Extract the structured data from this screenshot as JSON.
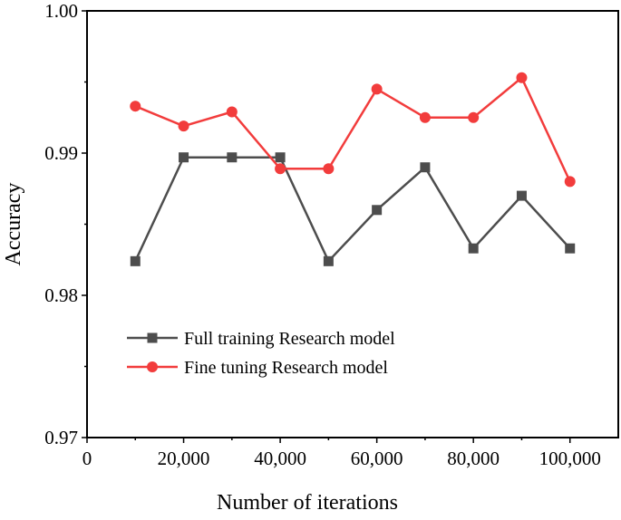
{
  "chart_data": {
    "type": "line",
    "title": "",
    "xlabel": "Number of iterations",
    "ylabel": "Accuracy",
    "xlim": [
      0,
      110000
    ],
    "ylim": [
      0.97,
      1.0
    ],
    "xticks": [
      0,
      20000,
      40000,
      60000,
      80000,
      100000
    ],
    "xtick_labels": [
      "0",
      "20,000",
      "40,000",
      "60,000",
      "80,000",
      "100,000"
    ],
    "yticks": [
      0.97,
      0.98,
      0.99,
      1.0
    ],
    "ytick_labels": [
      "0.97",
      "0.98",
      "0.99",
      "1.00"
    ],
    "grid": false,
    "legend_placement": "center-left",
    "x": [
      10000,
      20000,
      30000,
      40000,
      50000,
      60000,
      70000,
      80000,
      90000,
      100000
    ],
    "series": [
      {
        "name": "Full training Research model",
        "color": "#4d4d4d",
        "marker": "square",
        "values": [
          0.9824,
          0.9897,
          0.9897,
          0.9897,
          0.9824,
          0.986,
          0.989,
          0.9833,
          0.987,
          0.9833
        ]
      },
      {
        "name": "Fine tuning Research model",
        "color": "#f23c3c",
        "marker": "circle",
        "values": [
          0.9933,
          0.9919,
          0.9929,
          0.9889,
          0.9889,
          0.9945,
          0.9925,
          0.9925,
          0.9953,
          0.988
        ]
      }
    ]
  }
}
